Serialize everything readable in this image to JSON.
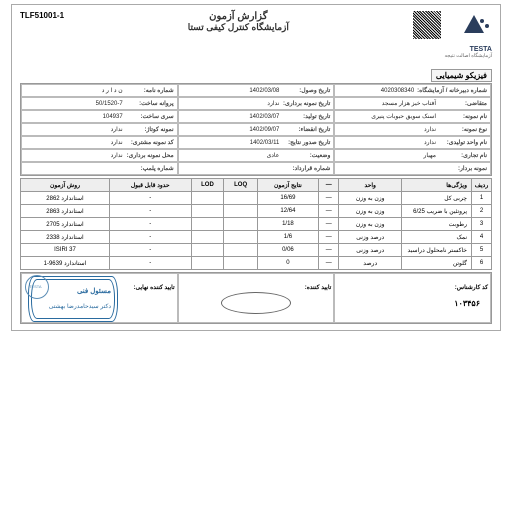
{
  "header": {
    "tlf": "TLF51001-1",
    "title1": "گزارش آزمون",
    "title2": "آزمایشگاه کنترل کیفی تستا",
    "brand": "TESTA",
    "brand_sub": "آزمایشگاه اصالت نتیجه"
  },
  "section": "فیزیکو شیمیایی",
  "meta": [
    [
      {
        "l": "شماره دبیرخانه / آزمایشگاه:",
        "v": "4020308340"
      },
      {
        "l": "تاریخ وصول:",
        "v": "1402/03/08"
      },
      {
        "l": "شماره نامه:",
        "v": "ن د ا ر د"
      }
    ],
    [
      {
        "l": "متقاضی:",
        "v": "آفتاب خیز هزار مسجد"
      },
      {
        "l": "تاریخ نمونه برداری:",
        "v": "ندارد"
      },
      {
        "l": "پروانه ساخت:",
        "v": "50/1520-7"
      }
    ],
    [
      {
        "l": "نام نمونه:",
        "v": "اسنک سویق حبوبات پنیری"
      },
      {
        "l": "تاریخ تولید:",
        "v": "1402/03/07"
      },
      {
        "l": "سری ساخت:",
        "v": "104937"
      }
    ],
    [
      {
        "l": "نوع نمونه:",
        "v": "ندارد"
      },
      {
        "l": "تاریخ انقضاء:",
        "v": "1402/09/07"
      },
      {
        "l": "نمونه کوتاژ:",
        "v": "ندارد"
      }
    ],
    [
      {
        "l": "نام واحد تولیدی:",
        "v": "ندارد"
      },
      {
        "l": "تاریخ صدور نتایج:",
        "v": "1402/03/11"
      },
      {
        "l": "کد نمونه مشتری:",
        "v": "ندارد"
      }
    ],
    [
      {
        "l": "نام تجاری:",
        "v": "مهیار"
      },
      {
        "l": "وضعیت:",
        "v": "عادی"
      },
      {
        "l": "محل نمونه برداری:",
        "v": "ندارد"
      }
    ],
    [
      {
        "l": "نمونه بردار:",
        "v": ""
      },
      {
        "l": "شماره قرارداد:",
        "v": ""
      },
      {
        "l": "شماره پلمپ:",
        "v": ""
      }
    ]
  ],
  "cols": [
    "ردیف",
    "ویژگی‌ها",
    "واحد",
    "—",
    "نتایج آزمون",
    "LOQ",
    "LOD",
    "حدود قابل قبول",
    "روش آزمون"
  ],
  "rows": [
    [
      "1",
      "چربی کل",
      "وزن به وزن",
      "—",
      "16/69",
      "",
      "",
      "-",
      "استاندارد 2862"
    ],
    [
      "2",
      "پروتئین با ضریب 6/25",
      "وزن به وزن",
      "—",
      "12/64",
      "",
      "",
      "-",
      "استاندارد 2863"
    ],
    [
      "3",
      "رطوبت",
      "وزن به وزن",
      "—",
      "1/18",
      "",
      "",
      "-",
      "استاندارد 2705"
    ],
    [
      "4",
      "نمک",
      "درصد وزنی",
      "—",
      "1/6",
      "",
      "",
      "-",
      "استاندارد 2338"
    ],
    [
      "5",
      "خاکستر نامحلول دراسید",
      "درصد وزنی",
      "—",
      "0/06",
      "",
      "",
      "-",
      "ISIRI 37"
    ],
    [
      "6",
      "گلوتن",
      "درصد",
      "—",
      "0",
      "",
      "",
      "-",
      "استاندارد 9639-1"
    ]
  ],
  "sig": {
    "c1": "کد کارشناس:",
    "c2": "تایید کننده:",
    "c3": "تایید کننده نهایی:",
    "code": "۱۰۳۴۵۶",
    "stamp1": "مسئول فنی",
    "stamp2": "دکتر سیدحامدرضا بهشتی"
  }
}
